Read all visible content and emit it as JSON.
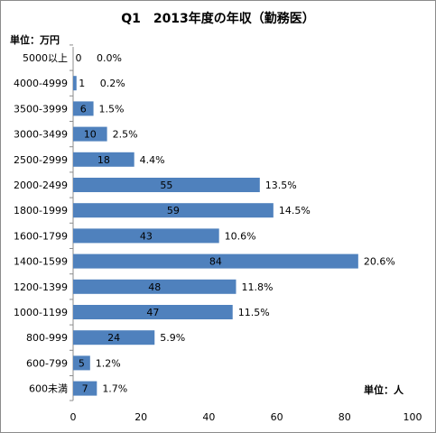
{
  "chart_data": {
    "type": "bar",
    "orientation": "horizontal",
    "title": "Q1　2013年度の年収（勤務医）",
    "unit_top": "単位：万円",
    "unit_bottom": "単位：人",
    "categories": [
      "5000以上",
      "4000-4999",
      "3500-3999",
      "3000-3499",
      "2500-2999",
      "2000-2499",
      "1800-1999",
      "1600-1799",
      "1400-1599",
      "1200-1399",
      "1000-1199",
      "800-999",
      "600-799",
      "600未満"
    ],
    "values": [
      0,
      1,
      6,
      10,
      18,
      55,
      59,
      43,
      84,
      48,
      47,
      24,
      5,
      7
    ],
    "percent_labels": [
      "0.0%",
      "0.2%",
      "1.5%",
      "2.5%",
      "4.4%",
      "13.5%",
      "14.5%",
      "10.6%",
      "20.6%",
      "11.8%",
      "11.5%",
      "5.9%",
      "1.2%",
      "1.7%"
    ],
    "xlim": [
      0,
      100
    ],
    "xticks": [
      0,
      20,
      40,
      60,
      80,
      100
    ],
    "bar_color": "#4f81bd",
    "grid": false,
    "legend": "none"
  }
}
